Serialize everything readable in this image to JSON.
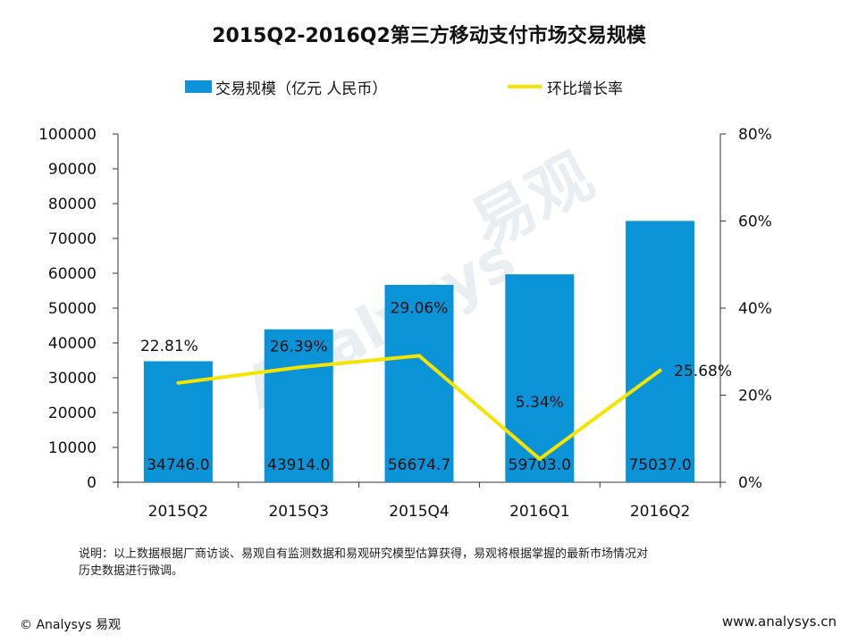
{
  "chart_data": {
    "type": "bar",
    "title": "2015Q2-2016Q2第三方移动支付市场交易规模",
    "categories": [
      "2015Q2",
      "2015Q3",
      "2015Q4",
      "2016Q1",
      "2016Q2"
    ],
    "series": [
      {
        "name": "交易规模（亿元 人民币）",
        "kind": "bar",
        "axis": "left",
        "values": [
          34746.0,
          43914.0,
          56674.7,
          59703.0,
          75037.0
        ],
        "labels": [
          "34746.0",
          "43914.0",
          "56674.7",
          "59703.0",
          "75037.0"
        ]
      },
      {
        "name": "环比增长率",
        "kind": "line",
        "axis": "right",
        "values": [
          22.81,
          26.39,
          29.06,
          5.34,
          25.68
        ],
        "labels": [
          "22.81%",
          "26.39%",
          "29.06%",
          "5.34%",
          "25.68%"
        ]
      }
    ],
    "y_left": {
      "min": 0,
      "max": 100000,
      "ticks": [
        "0",
        "10000",
        "20000",
        "30000",
        "40000",
        "50000",
        "60000",
        "70000",
        "80000",
        "90000",
        "100000"
      ]
    },
    "y_right": {
      "min": 0,
      "max": 80,
      "ticks": [
        "0%",
        "20%",
        "40%",
        "60%",
        "80%"
      ]
    },
    "legend_position": "top",
    "colors": {
      "bar": "#0b93d8",
      "line": "#f5e400",
      "axis": "#333333"
    }
  },
  "legend": {
    "bar_label": "交易规模（亿元 人民币）",
    "line_label": "环比增长率"
  },
  "note": {
    "line1": "说明：以上数据根据厂商访谈、易观自有监测数据和易观研究模型估算获得，易观将根据掌握的最新市场情况对",
    "line2": "历史数据进行微调。"
  },
  "footer": {
    "copyright": "© Analysys 易观",
    "url": "www.analysys.cn"
  },
  "watermark": {
    "brand": "Analysys",
    "cn": "易观"
  }
}
